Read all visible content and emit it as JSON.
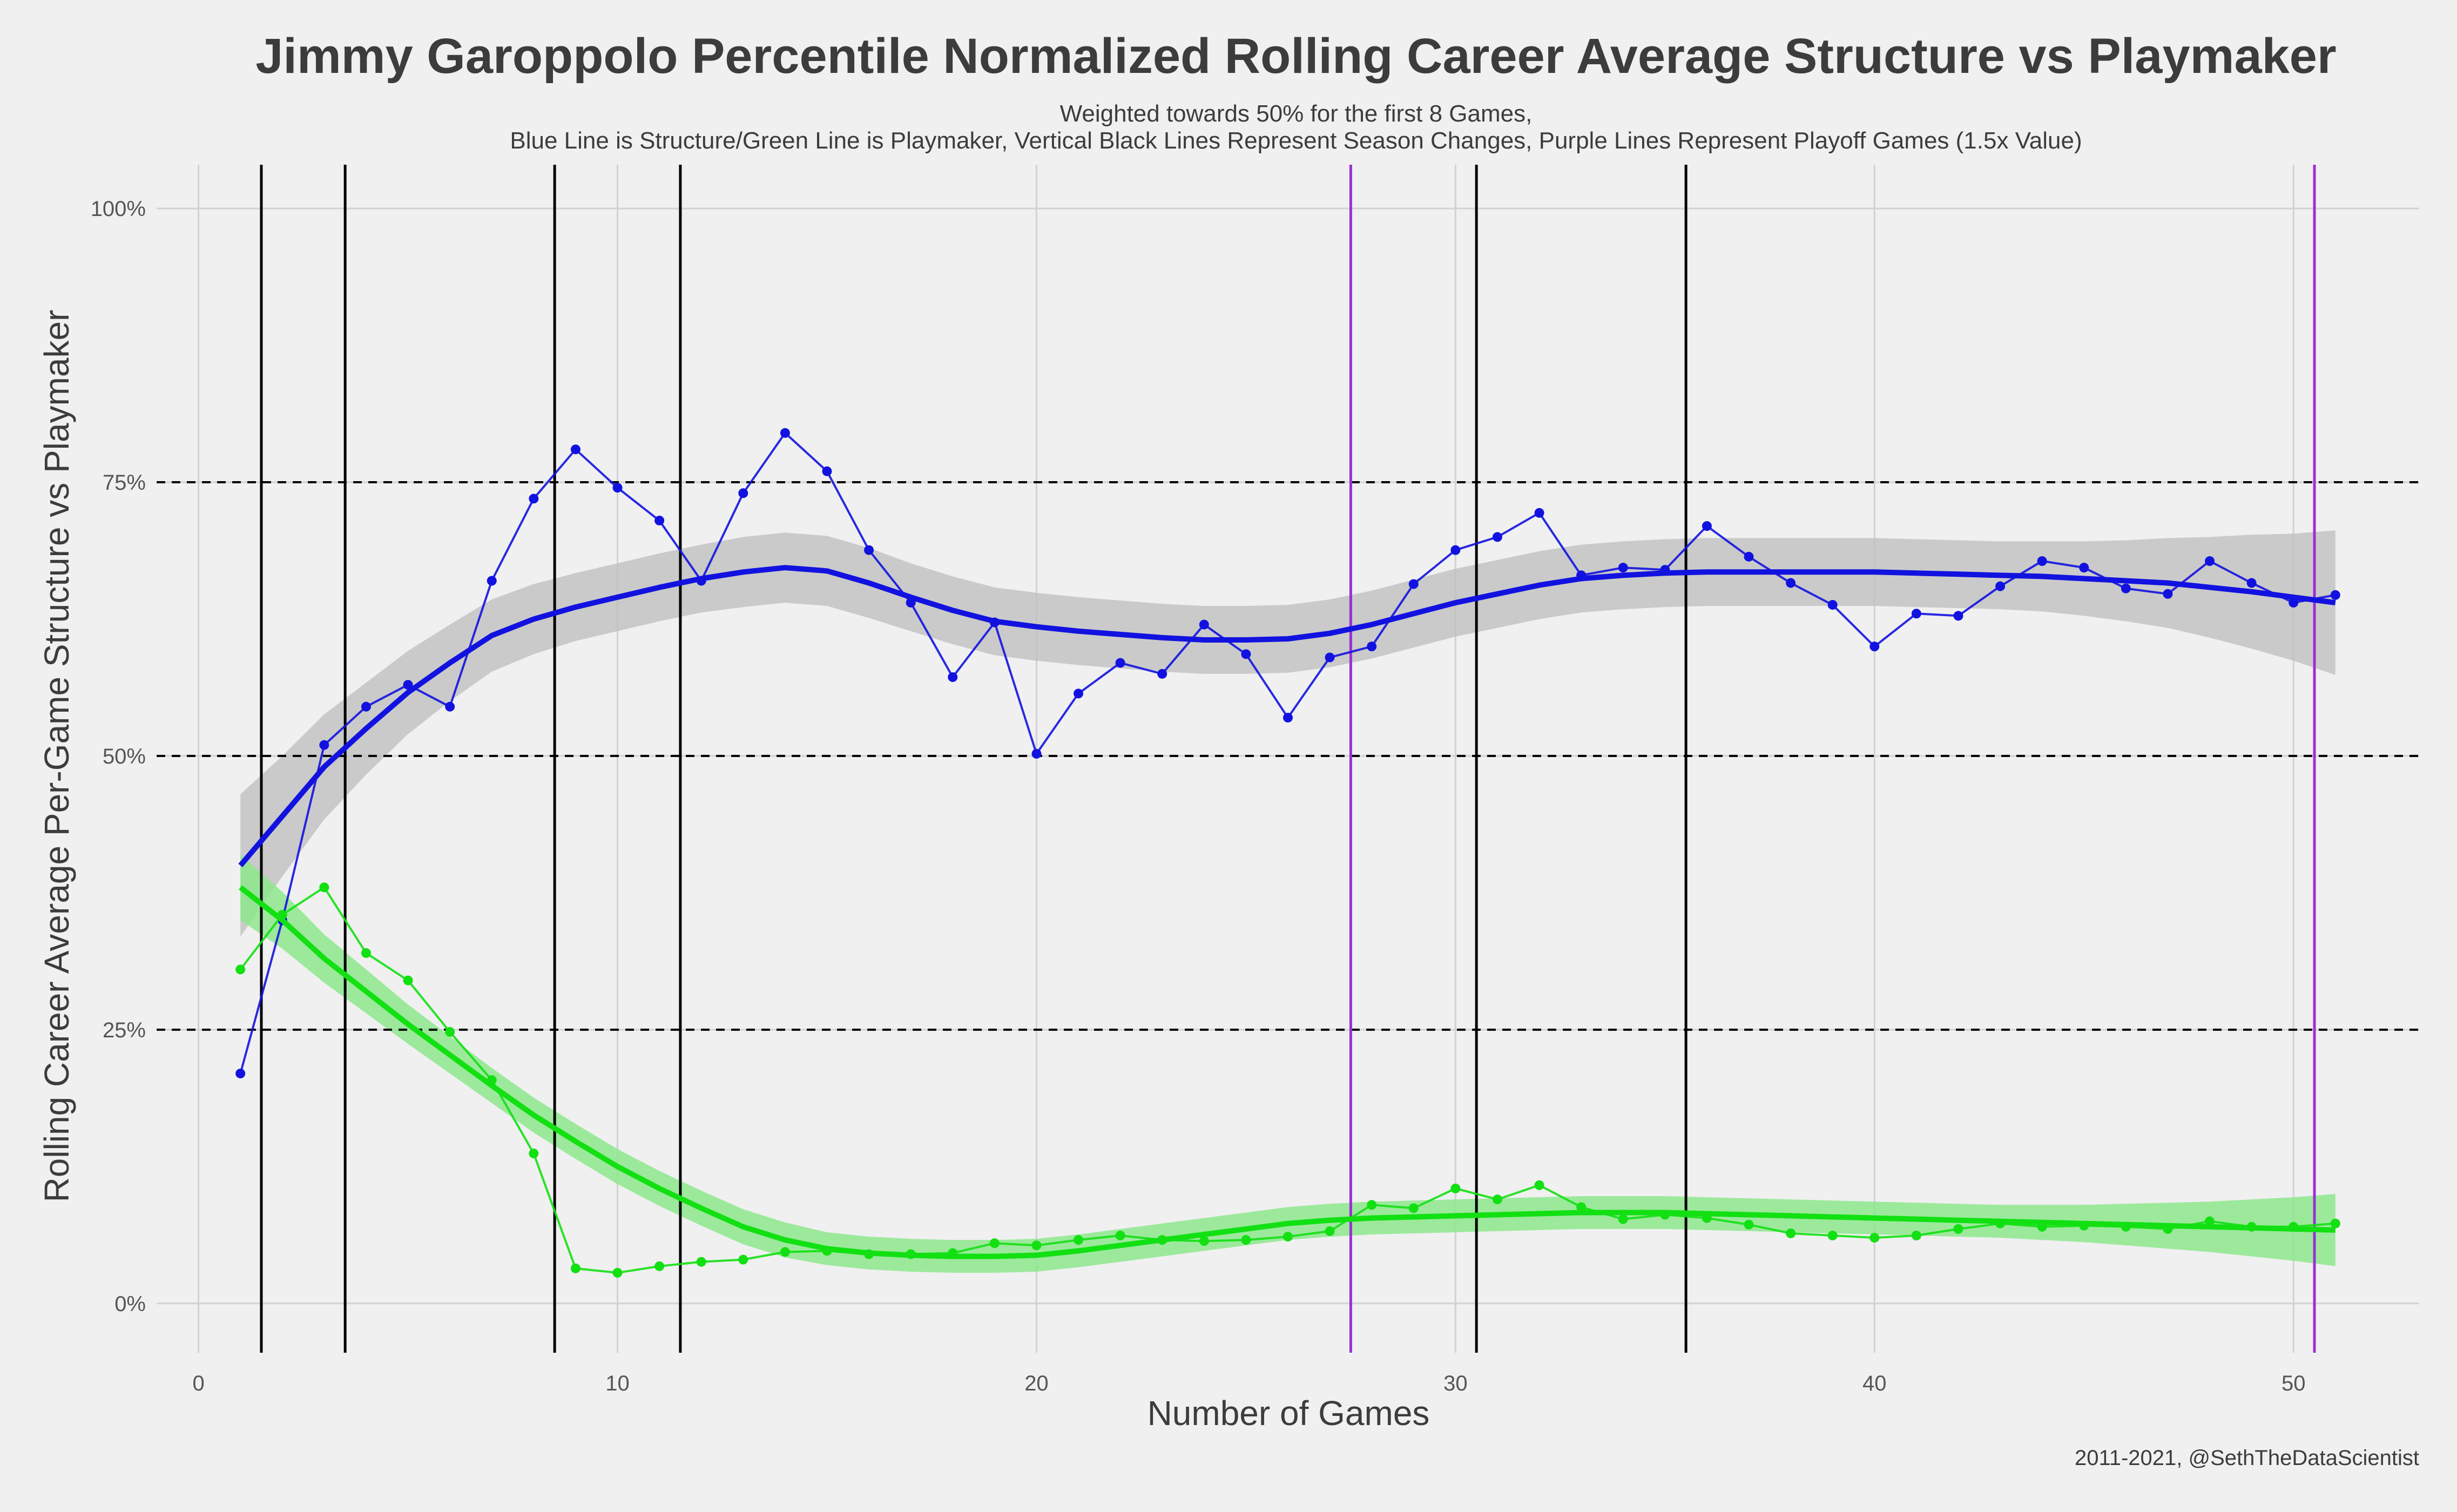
{
  "chart_data": {
    "type": "line",
    "title": "Jimmy Garoppolo Percentile Normalized Rolling Career Average Structure vs Playmaker",
    "subtitle_lines": [
      "Weighted towards 50% for the first 8 Games,",
      "Blue Line is Structure/Green Line is Playmaker, Vertical Black Lines Represent Season Changes, Purple Lines Represent Playoff Games (1.5x Value)"
    ],
    "xlabel": "Number of Games",
    "ylabel": "Rolling Career Average Per-Game Structure vs Playmaker",
    "caption": "2011-2021, @SethTheDataScientist",
    "xlim": [
      -1,
      53
    ],
    "ylim": [
      -0.045,
      1.04
    ],
    "x_ticks": [
      0,
      10,
      20,
      30,
      40,
      50
    ],
    "x_tick_labels": [
      "0",
      "10",
      "20",
      "30",
      "40",
      "50"
    ],
    "y_ticks": [
      0,
      0.25,
      0.5,
      0.75,
      1.0
    ],
    "y_tick_labels": [
      "0%",
      "25%",
      "50%",
      "75%",
      "100%"
    ],
    "reference_lines_y": [
      0.25,
      0.5,
      0.75
    ],
    "season_change_lines_x": [
      1.5,
      3.5,
      8.5,
      11.5,
      30.5,
      35.5
    ],
    "playoff_lines_x": [
      27.5,
      50.5
    ],
    "colors": {
      "background": "#f0f0f0",
      "grid": "#d2d2d2",
      "structure": "#1212e0",
      "playmaker": "#12e012",
      "structure_band": "#bdbdbd",
      "playmaker_band": "#8de88d",
      "season_line": "#000000",
      "playoff_line": "#9a2fd6"
    },
    "x": [
      1,
      2,
      3,
      4,
      5,
      6,
      7,
      8,
      9,
      10,
      11,
      12,
      13,
      14,
      15,
      16,
      17,
      18,
      19,
      20,
      21,
      22,
      23,
      24,
      25,
      26,
      27,
      28,
      29,
      30,
      31,
      32,
      33,
      34,
      35,
      36,
      37,
      38,
      39,
      40,
      41,
      42,
      43,
      44,
      45,
      46,
      47,
      48,
      49,
      50,
      51
    ],
    "series": [
      {
        "name": "Structure",
        "values": [
          0.21,
          0.35,
          0.51,
          0.545,
          0.565,
          0.545,
          0.66,
          0.735,
          0.78,
          0.745,
          0.715,
          0.66,
          0.74,
          0.795,
          0.76,
          0.688,
          0.64,
          0.572,
          0.622,
          0.502,
          0.557,
          0.585,
          0.575,
          0.62,
          0.593,
          0.535,
          0.59,
          0.6,
          0.657,
          0.688,
          0.7,
          0.722,
          0.665,
          0.672,
          0.67,
          0.71,
          0.682,
          0.658,
          0.638,
          0.6,
          0.63,
          0.628,
          0.655,
          0.678,
          0.672,
          0.653,
          0.648,
          0.678,
          0.658,
          0.64,
          0.647
        ],
        "smooth": [
          0.4,
          0.445,
          0.49,
          0.525,
          0.558,
          0.585,
          0.61,
          0.625,
          0.636,
          0.645,
          0.654,
          0.662,
          0.668,
          0.672,
          0.669,
          0.658,
          0.645,
          0.633,
          0.623,
          0.618,
          0.614,
          0.611,
          0.608,
          0.606,
          0.606,
          0.607,
          0.612,
          0.62,
          0.63,
          0.64,
          0.648,
          0.656,
          0.662,
          0.665,
          0.667,
          0.668,
          0.668,
          0.668,
          0.668,
          0.668,
          0.667,
          0.666,
          0.665,
          0.664,
          0.662,
          0.66,
          0.658,
          0.654,
          0.65,
          0.645,
          0.64
        ],
        "band_half_width": [
          0.065,
          0.055,
          0.048,
          0.042,
          0.038,
          0.035,
          0.033,
          0.032,
          0.031,
          0.031,
          0.031,
          0.031,
          0.032,
          0.032,
          0.032,
          0.032,
          0.031,
          0.031,
          0.031,
          0.031,
          0.031,
          0.031,
          0.031,
          0.031,
          0.031,
          0.031,
          0.031,
          0.031,
          0.031,
          0.031,
          0.031,
          0.031,
          0.031,
          0.031,
          0.031,
          0.031,
          0.031,
          0.031,
          0.031,
          0.031,
          0.031,
          0.031,
          0.031,
          0.032,
          0.034,
          0.037,
          0.041,
          0.046,
          0.052,
          0.058,
          0.066
        ]
      },
      {
        "name": "Playmaker",
        "values": [
          0.305,
          0.355,
          0.38,
          0.32,
          0.295,
          0.248,
          0.204,
          0.137,
          0.032,
          0.028,
          0.034,
          0.038,
          0.04,
          0.047,
          0.048,
          0.045,
          0.045,
          0.046,
          0.055,
          0.053,
          0.058,
          0.062,
          0.058,
          0.057,
          0.058,
          0.061,
          0.066,
          0.09,
          0.087,
          0.105,
          0.095,
          0.108,
          0.088,
          0.077,
          0.081,
          0.078,
          0.072,
          0.064,
          0.062,
          0.06,
          0.062,
          0.068,
          0.073,
          0.07,
          0.071,
          0.07,
          0.068,
          0.075,
          0.07,
          0.07,
          0.073
        ],
        "smooth": [
          0.38,
          0.35,
          0.315,
          0.285,
          0.255,
          0.227,
          0.199,
          0.172,
          0.148,
          0.125,
          0.105,
          0.087,
          0.07,
          0.058,
          0.05,
          0.046,
          0.044,
          0.043,
          0.043,
          0.044,
          0.048,
          0.053,
          0.058,
          0.063,
          0.068,
          0.073,
          0.076,
          0.078,
          0.079,
          0.08,
          0.081,
          0.082,
          0.083,
          0.083,
          0.083,
          0.082,
          0.081,
          0.08,
          0.079,
          0.078,
          0.077,
          0.076,
          0.075,
          0.074,
          0.073,
          0.072,
          0.071,
          0.07,
          0.069,
          0.068,
          0.067
        ],
        "band_half_width": [
          0.03,
          0.026,
          0.022,
          0.02,
          0.018,
          0.017,
          0.016,
          0.016,
          0.016,
          0.016,
          0.016,
          0.016,
          0.016,
          0.016,
          0.015,
          0.015,
          0.015,
          0.015,
          0.015,
          0.015,
          0.015,
          0.015,
          0.015,
          0.015,
          0.015,
          0.015,
          0.015,
          0.015,
          0.015,
          0.015,
          0.015,
          0.015,
          0.015,
          0.015,
          0.015,
          0.015,
          0.015,
          0.015,
          0.015,
          0.015,
          0.015,
          0.015,
          0.015,
          0.016,
          0.017,
          0.019,
          0.021,
          0.023,
          0.026,
          0.029,
          0.033
        ]
      }
    ]
  }
}
